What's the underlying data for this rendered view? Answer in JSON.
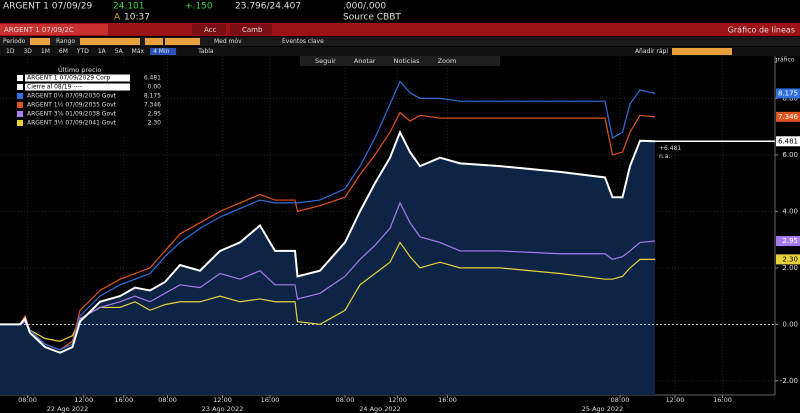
{
  "header": {
    "ticker": "ARGENT 1 07/09/29",
    "price": "24.101",
    "change": "+.150",
    "bid_ask": "23.796/24.407",
    "yield": ".000/.000",
    "flag": "A",
    "time": "10:37",
    "source": "Source CBBT"
  },
  "toolbar": {
    "security": "ARGENT 1 07/09/2C",
    "actions": [
      "Acc",
      "Camb"
    ],
    "view": "Gráfico de líneas"
  },
  "settings": {
    "labels": [
      "Periodo",
      "Rango",
      "Med móv",
      "Eventos clave"
    ]
  },
  "ranges": {
    "items": [
      "1D",
      "3D",
      "1M",
      "6M",
      "YTD",
      "1A",
      "5A",
      "Máx"
    ],
    "selected": "4 Min",
    "table": "Tabla",
    "quick_add": "Añadir rápi",
    "change_chart": "Cmb gráfico"
  },
  "chart_tools": [
    "Seguir",
    "Anotar",
    "Noticias",
    "Zoom"
  ],
  "chart_data": {
    "type": "line",
    "legend_title": "Último precio",
    "x": [
      0,
      1.6,
      2,
      2.4,
      3.6,
      4.8,
      5.8,
      6.4,
      8,
      9.6,
      10.8,
      12,
      13.2,
      14.4,
      16,
      17.6,
      19.2,
      20.8,
      22,
      23.6,
      23.8,
      25.6,
      27.6,
      28.8,
      30,
      31.2,
      32,
      32.8,
      33.6,
      35.2,
      36.8,
      40,
      44.8,
      48.4,
      49,
      49.8,
      50.4,
      51.2,
      52.4
    ],
    "xlim": [
      0,
      62
    ],
    "xticks": [
      {
        "value": 2.2,
        "label": "08:00"
      },
      {
        "value": 6.7,
        "label": "12:00"
      },
      {
        "value": 9.9,
        "label": "16:00"
      },
      {
        "value": 13.4,
        "label": "08:00"
      },
      {
        "value": 17.8,
        "label": "12:00"
      },
      {
        "value": 21.6,
        "label": "16:00"
      },
      {
        "value": 27.6,
        "label": "08:00"
      },
      {
        "value": 31.8,
        "label": "12:00"
      },
      {
        "value": 35.8,
        "label": "16:00"
      },
      {
        "value": 49.6,
        "label": "08:00"
      },
      {
        "value": 54,
        "label": "12:00"
      },
      {
        "value": 57.8,
        "label": "16:00"
      }
    ],
    "date_labels": [
      {
        "value": 5.4,
        "label": "22 Ago 2022"
      },
      {
        "value": 17.8,
        "label": "23 Ago 2022"
      },
      {
        "value": 30.4,
        "label": "24 Ago 2022"
      },
      {
        "value": 48.2,
        "label": "25 Ago 2022"
      }
    ],
    "ylim": [
      -2.5,
      9.5
    ],
    "yticks": [
      {
        "value": -2,
        "label": "-2.00"
      },
      {
        "value": 0,
        "label": "0.00"
      },
      {
        "value": 2,
        "label": "2.00"
      },
      {
        "value": 4,
        "label": "4.00"
      },
      {
        "value": 6,
        "label": "6.00"
      },
      {
        "value": 8,
        "label": "8.00"
      }
    ],
    "grid": true,
    "series": [
      {
        "name": "ARGENT 1 07/09/2029 Corp",
        "color": "#ffffff",
        "area": true,
        "last_label": "6.481",
        "values": [
          0,
          0,
          0.2,
          -0.3,
          -0.8,
          -1.0,
          -0.8,
          0.1,
          0.8,
          1.0,
          1.3,
          1.2,
          1.5,
          2.1,
          1.9,
          2.6,
          2.9,
          3.5,
          2.6,
          2.6,
          1.7,
          1.9,
          2.9,
          4.0,
          5.0,
          5.9,
          6.8,
          6.1,
          5.6,
          5.9,
          5.7,
          5.6,
          5.4,
          5.2,
          4.5,
          4.5,
          5.6,
          6.5,
          6.481
        ]
      },
      {
        "name": "ARGENT 0½ 07/09/2030 Govt",
        "color": "#2f6fe0",
        "area": false,
        "last_label": "8.175",
        "values": [
          0,
          0,
          0.2,
          -0.2,
          -0.7,
          -0.9,
          -0.7,
          0.3,
          1.0,
          1.4,
          1.6,
          1.8,
          2.4,
          2.9,
          3.4,
          3.8,
          4.1,
          4.4,
          4.3,
          4.3,
          4.3,
          4.4,
          4.8,
          5.6,
          6.6,
          7.8,
          8.6,
          8.2,
          8.0,
          8.0,
          7.9,
          7.9,
          7.9,
          7.9,
          6.6,
          6.8,
          7.8,
          8.3,
          8.175
        ]
      },
      {
        "name": "ARGENT 1½ 07/09/2035 Govt",
        "color": "#e0531f",
        "area": false,
        "last_label": "7.346",
        "values": [
          0,
          0,
          0.3,
          -0.2,
          -0.7,
          -0.9,
          -0.6,
          0.5,
          1.2,
          1.6,
          1.8,
          2.0,
          2.6,
          3.2,
          3.6,
          4.0,
          4.3,
          4.6,
          4.4,
          4.4,
          4.0,
          4.2,
          4.5,
          5.3,
          6.0,
          6.8,
          7.5,
          7.2,
          7.4,
          7.3,
          7.3,
          7.3,
          7.3,
          7.3,
          6.0,
          6.1,
          6.8,
          7.4,
          7.346
        ]
      },
      {
        "name": "ARGENT 3⅝ 01/09/2038 Govt",
        "color": "#a77cf2",
        "area": false,
        "last_label": "2.95",
        "values": [
          0,
          0,
          0.1,
          -0.3,
          -0.7,
          -0.9,
          -0.6,
          0.2,
          0.6,
          0.8,
          1.0,
          0.8,
          1.1,
          1.4,
          1.3,
          1.8,
          1.6,
          1.9,
          1.4,
          1.4,
          0.9,
          1.1,
          1.7,
          2.3,
          2.8,
          3.4,
          4.3,
          3.6,
          3.1,
          2.9,
          2.6,
          2.6,
          2.5,
          2.5,
          2.3,
          2.4,
          2.6,
          2.9,
          2.95
        ]
      },
      {
        "name": "ARGENT 3½ 07/09/2041 Govt",
        "color": "#e8d23a",
        "area": false,
        "last_label": "2.30",
        "values": [
          0,
          0,
          0.1,
          -0.2,
          -0.5,
          -0.6,
          -0.4,
          0.2,
          0.6,
          0.6,
          0.8,
          0.5,
          0.7,
          0.8,
          0.8,
          1.0,
          0.8,
          0.9,
          0.8,
          0.8,
          0.1,
          0.0,
          0.5,
          1.4,
          1.8,
          2.2,
          2.9,
          2.4,
          2.0,
          2.2,
          2.0,
          2.0,
          1.8,
          1.6,
          1.6,
          1.7,
          2.0,
          2.3,
          2.3
        ]
      }
    ],
    "reference": {
      "name": "Cierre al 08/19 ----",
      "value": 0,
      "value_label": "0.00",
      "color": "#ffffff"
    },
    "annotations": [
      "+6.481",
      "n.a."
    ]
  }
}
